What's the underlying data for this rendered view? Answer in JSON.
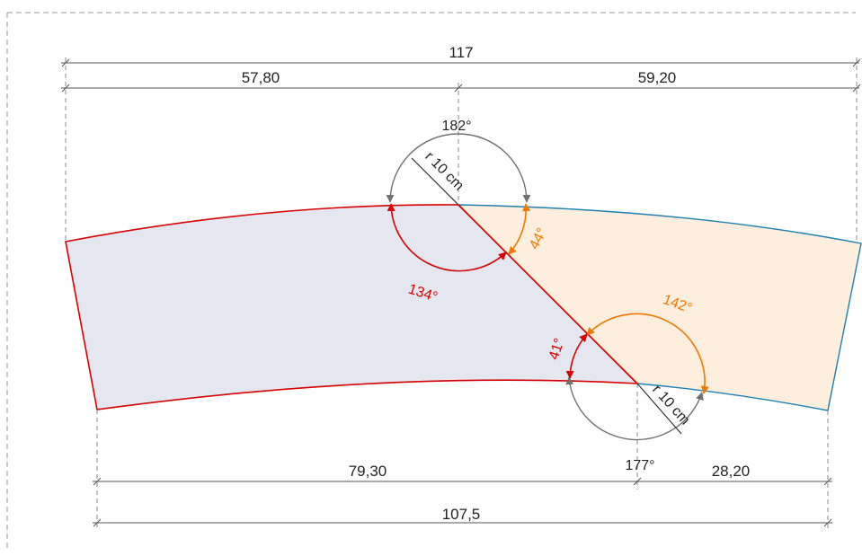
{
  "colors": {
    "red": "#d60000",
    "blue": "#1f7fb0",
    "orange": "#f07800",
    "gray": "#707070",
    "left_fill": "#e4e6f0",
    "right_fill": "#fdeedd",
    "frame": "#9a9a9a"
  },
  "dimensions": {
    "top_total": "117",
    "top_left": "57,80",
    "top_right": "59,20",
    "bottom_left": "79,30",
    "bottom_right": "28,20",
    "bottom_total": "107,5"
  },
  "angles": {
    "top_outer": "182°",
    "top_radius": "r 10 cm",
    "top_left_inner": "134°",
    "top_right_inner": "44°",
    "bottom_right_inner": "142°",
    "bottom_left_inner": "41°",
    "bottom_radius": "r 10 cm",
    "bottom_outer": "177°"
  }
}
